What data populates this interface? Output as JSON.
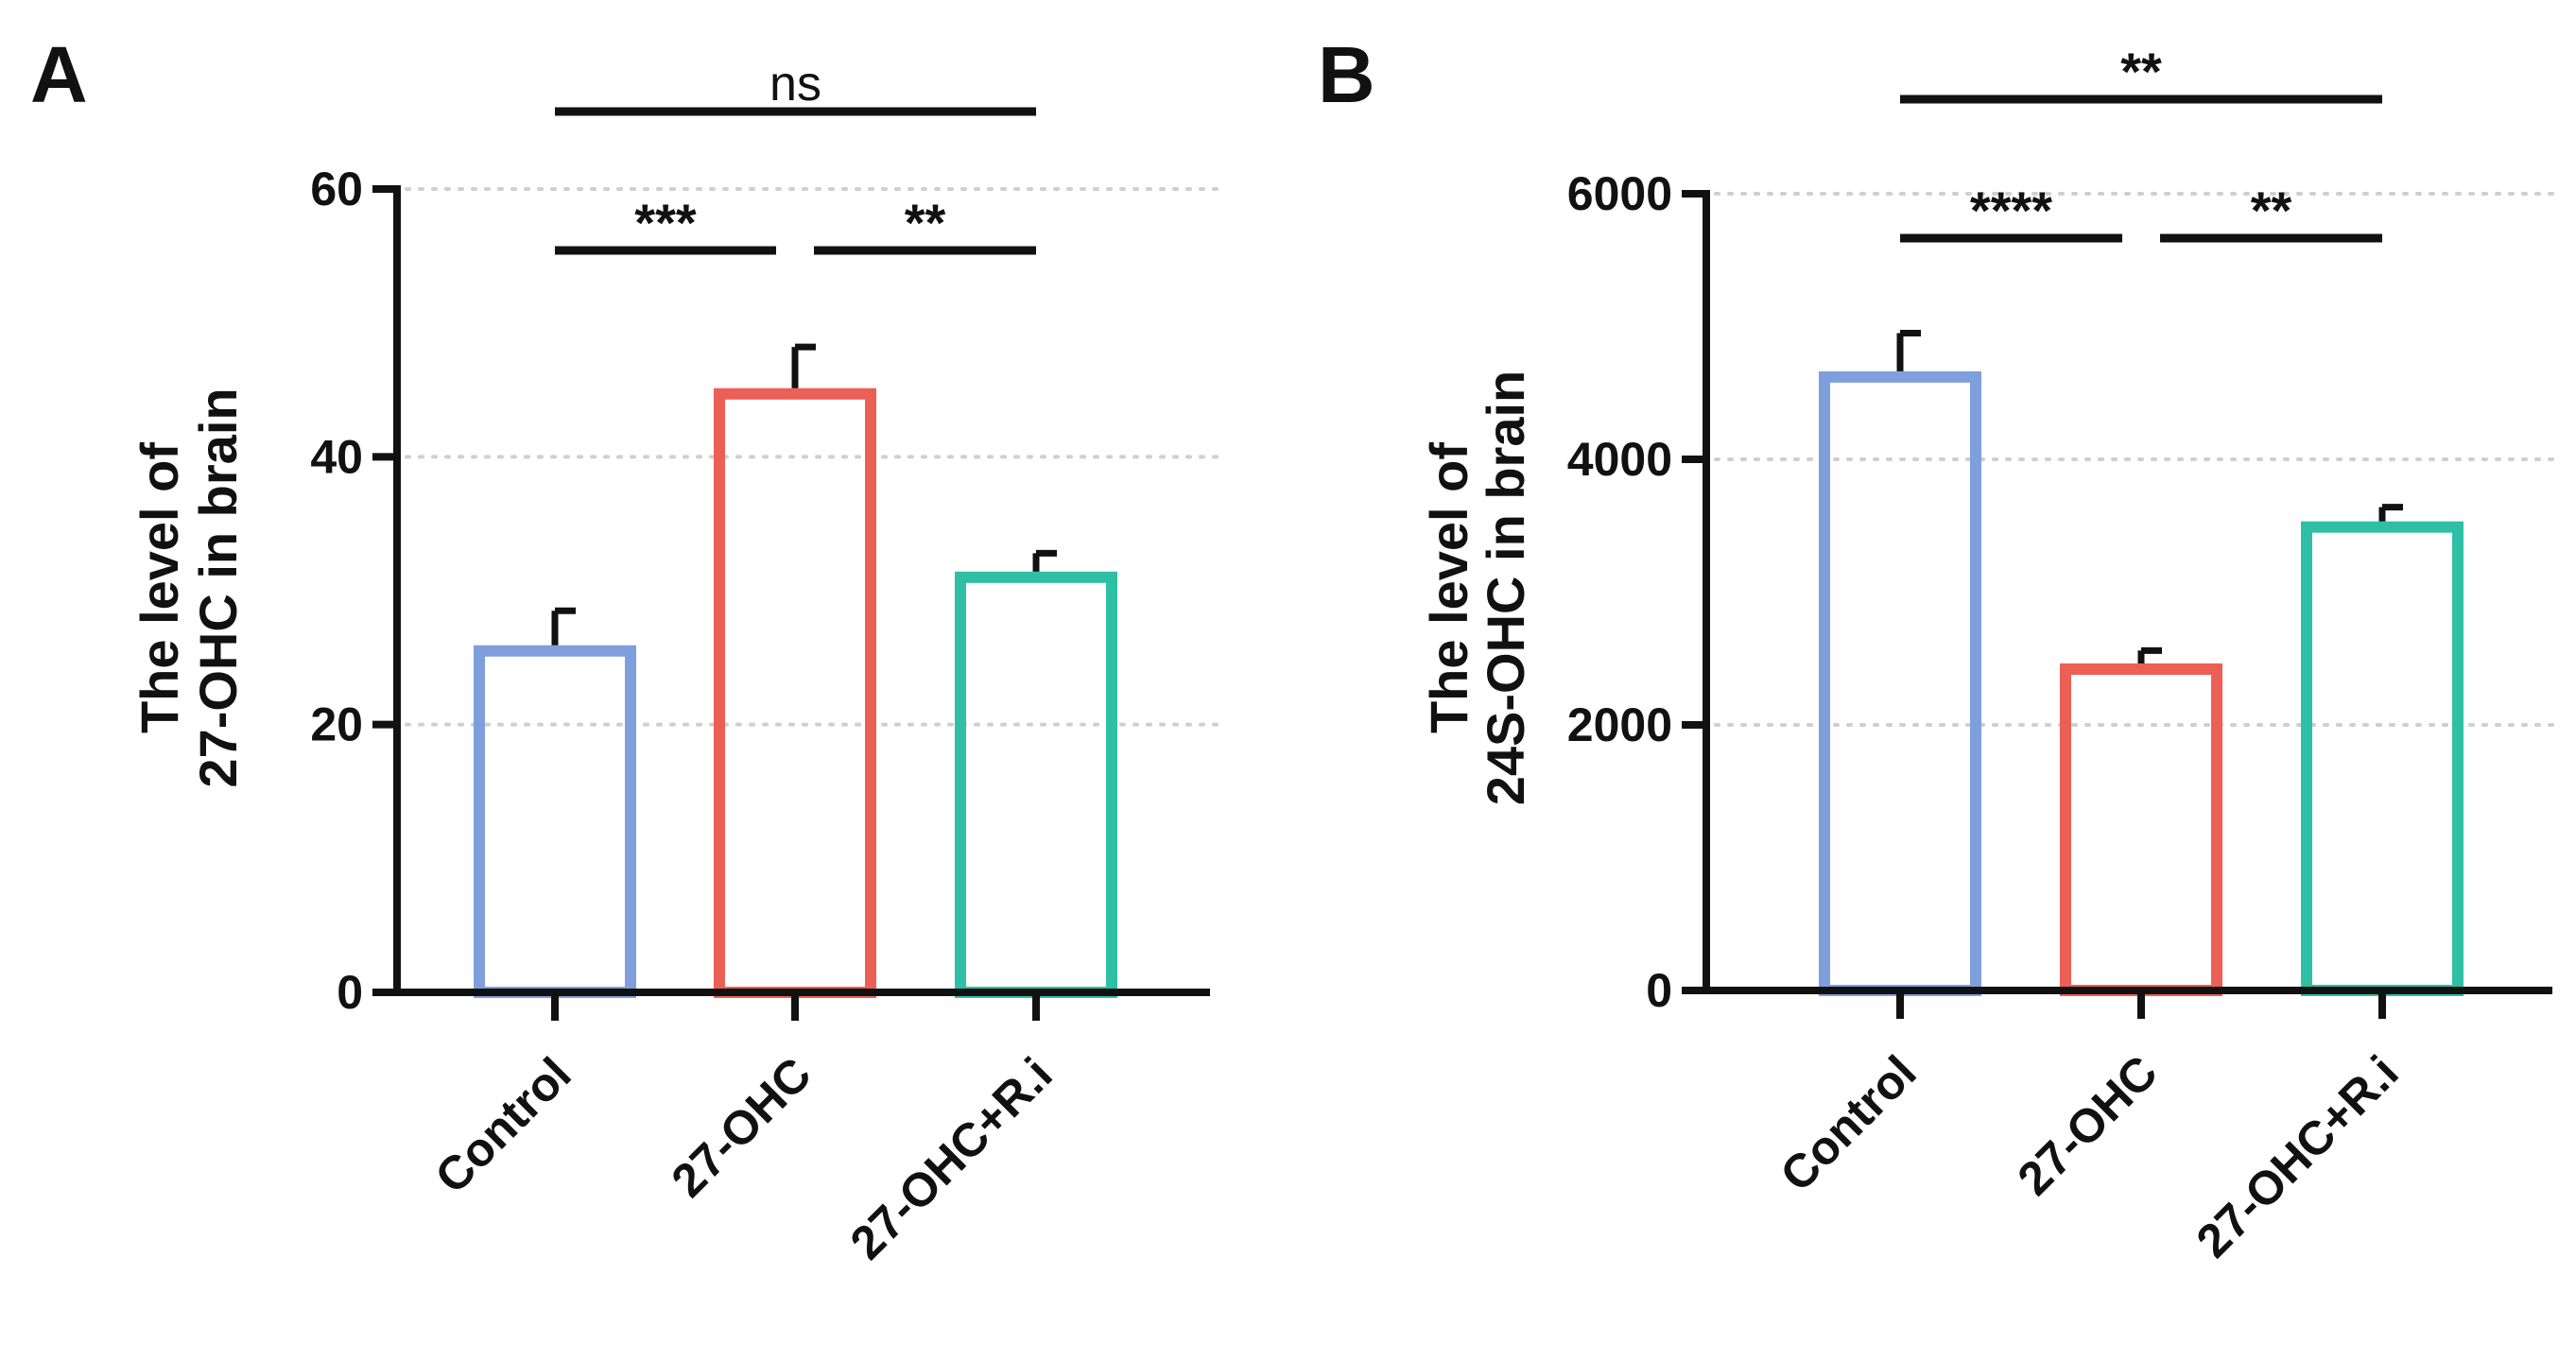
{
  "panels": [
    {
      "letter": "A",
      "ylabel_line1": "The level of",
      "ylabel_line2": "27-OHC in brain",
      "significance": [
        {
          "from": 0,
          "to": 2,
          "label": "ns"
        },
        {
          "from": 0,
          "to": 1,
          "label": "***"
        },
        {
          "from": 1,
          "to": 2,
          "label": "**"
        }
      ]
    },
    {
      "letter": "B",
      "ylabel_line1": "The level of",
      "ylabel_line2": "24S-OHC in brain",
      "significance": [
        {
          "from": 0,
          "to": 2,
          "label": "**"
        },
        {
          "from": 0,
          "to": 1,
          "label": "****"
        },
        {
          "from": 1,
          "to": 2,
          "label": "**"
        }
      ]
    }
  ],
  "chart_data": [
    {
      "type": "bar",
      "title": "",
      "xlabel": "",
      "ylabel": "The level of 27-OHC in brain",
      "categories": [
        "Control",
        "27-OHC",
        "27-OHC+R.i"
      ],
      "values": [
        25.5,
        44.7,
        31
      ],
      "errors": [
        3,
        3.5,
        1.8
      ],
      "colors": [
        "#7f9fdc",
        "#ec5f55",
        "#2ebfa5"
      ],
      "ylim": [
        0,
        60
      ],
      "yticks": [
        0,
        20,
        40,
        60
      ],
      "ytick_labels": [
        "0",
        "20",
        "40",
        "60"
      ],
      "grid": true
    },
    {
      "type": "bar",
      "title": "",
      "xlabel": "",
      "ylabel": "The level of 24S-OHC in brain",
      "categories": [
        "Control",
        "27-OHC",
        "27-OHC+R.i"
      ],
      "values": [
        4620,
        2420,
        3490
      ],
      "errors": [
        330,
        140,
        150
      ],
      "colors": [
        "#7f9fdc",
        "#ec5f55",
        "#2ebfa5"
      ],
      "ylim": [
        0,
        6000
      ],
      "yticks": [
        0,
        2000,
        4000,
        6000
      ],
      "ytick_labels": [
        "0",
        "2000",
        "4000",
        "6000"
      ],
      "grid": true
    }
  ]
}
